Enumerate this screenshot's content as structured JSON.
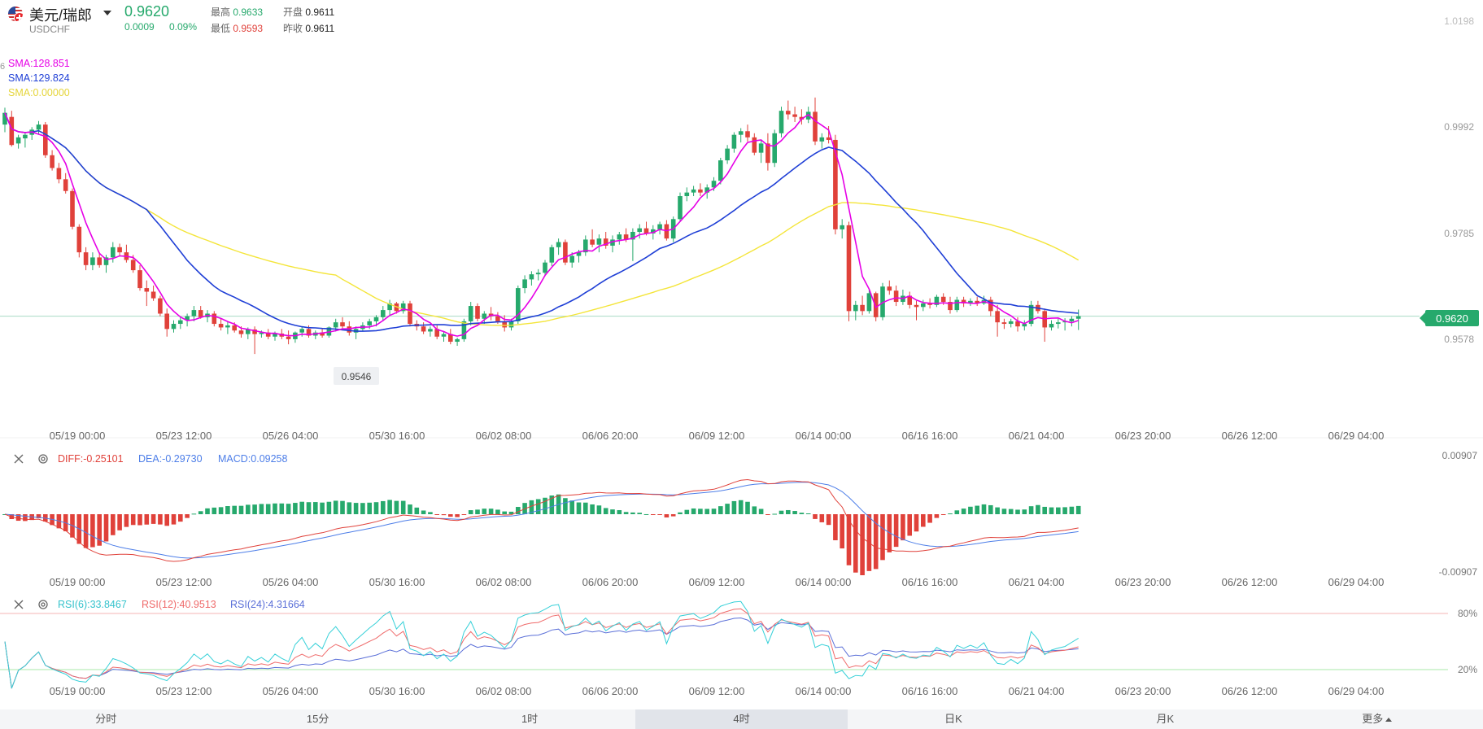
{
  "header": {
    "name": "美元/瑞郎",
    "code": "USDCHF",
    "price": "0.9620",
    "change": "0.0009",
    "change_pct": "0.09%",
    "stats": [
      {
        "label": "最高",
        "value": "0.9633",
        "color": "#26a96c"
      },
      {
        "label": "最低",
        "value": "0.9593",
        "color": "#e0413a"
      },
      {
        "label": "开盘",
        "value": "0.9611",
        "color": "#222222"
      },
      {
        "label": "昨收",
        "value": "0.9611",
        "color": "#222222"
      }
    ]
  },
  "indicators": {
    "sma": [
      "SMA:128.851",
      "SMA:129.824",
      "SMA:0.00000"
    ],
    "macd": [
      "DIFF:-0.25101",
      "DEA:-0.29730",
      "MACD:0.09258"
    ],
    "rsi": [
      "RSI(6):33.8467",
      "RSI(12):40.9513",
      "RSI(24):4.31664"
    ],
    "stray_label": "6"
  },
  "axes": {
    "price_ticks": [
      "1.0198",
      "0.9992",
      "0.9785",
      "0.9578"
    ],
    "current_price": "0.9620",
    "min_marker": "0.9546",
    "macd_ticks": [
      "0.00907",
      "-0.00907"
    ],
    "rsi_ticks": [
      "80%",
      "20%"
    ],
    "time_labels": [
      "05/19 00:00",
      "05/23 12:00",
      "05/26 04:00",
      "05/30 16:00",
      "06/02 08:00",
      "06/06 20:00",
      "06/09 12:00",
      "06/14 00:00",
      "06/16 16:00",
      "06/21 04:00",
      "06/23 20:00",
      "06/26 12:00",
      "06/29 04:00"
    ]
  },
  "tabs": [
    {
      "label": "分时",
      "active": false
    },
    {
      "label": "15分",
      "active": false
    },
    {
      "label": "1时",
      "active": false
    },
    {
      "label": "4时",
      "active": true
    },
    {
      "label": "日K",
      "active": false
    },
    {
      "label": "月K",
      "active": false
    },
    {
      "label": "更多",
      "active": false
    }
  ],
  "colors": {
    "up": "#26a96c",
    "down": "#e0413a",
    "sma_short": "#e600e6",
    "sma_mid": "#1f3fd6",
    "sma_long": "#f4e53a",
    "diff": "#e0413a",
    "dea": "#4d7ee8",
    "rsi6": "#35d0d8",
    "rsi12": "#ef6a6a",
    "rsi24": "#5a6fd8",
    "price_tag": "#26a96c"
  },
  "chart_data": {
    "type": "candlestick",
    "price_range": [
      0.95,
      1.0198
    ],
    "candles": [
      {
        "o": 0.9995,
        "h": 1.0028,
        "l": 0.998,
        "c": 1.0018
      },
      {
        "o": 1.001,
        "h": 1.0022,
        "l": 0.9952,
        "c": 0.9955
      },
      {
        "o": 0.9958,
        "h": 0.9975,
        "l": 0.9948,
        "c": 0.997
      },
      {
        "o": 0.9968,
        "h": 0.998,
        "l": 0.995,
        "c": 0.9975
      },
      {
        "o": 0.9975,
        "h": 0.999,
        "l": 0.9965,
        "c": 0.9985
      },
      {
        "o": 0.9985,
        "h": 1.0002,
        "l": 0.9975,
        "c": 0.9995
      },
      {
        "o": 0.9995,
        "h": 1.0,
        "l": 0.993,
        "c": 0.9935
      },
      {
        "o": 0.9935,
        "h": 0.9945,
        "l": 0.9905,
        "c": 0.991
      },
      {
        "o": 0.991,
        "h": 0.992,
        "l": 0.988,
        "c": 0.9888
      },
      {
        "o": 0.9888,
        "h": 0.99,
        "l": 0.986,
        "c": 0.9865
      },
      {
        "o": 0.9865,
        "h": 0.987,
        "l": 0.979,
        "c": 0.9795
      },
      {
        "o": 0.9795,
        "h": 0.98,
        "l": 0.9735,
        "c": 0.9745
      },
      {
        "o": 0.9745,
        "h": 0.9755,
        "l": 0.971,
        "c": 0.972
      },
      {
        "o": 0.972,
        "h": 0.9745,
        "l": 0.971,
        "c": 0.9735
      },
      {
        "o": 0.9735,
        "h": 0.9745,
        "l": 0.9715,
        "c": 0.972
      },
      {
        "o": 0.972,
        "h": 0.974,
        "l": 0.9705,
        "c": 0.9735
      },
      {
        "o": 0.9735,
        "h": 0.9765,
        "l": 0.9725,
        "c": 0.9755
      },
      {
        "o": 0.9755,
        "h": 0.9762,
        "l": 0.9738,
        "c": 0.9745
      },
      {
        "o": 0.9745,
        "h": 0.976,
        "l": 0.9725,
        "c": 0.973
      },
      {
        "o": 0.973,
        "h": 0.974,
        "l": 0.9705,
        "c": 0.971
      },
      {
        "o": 0.971,
        "h": 0.972,
        "l": 0.967,
        "c": 0.9675
      },
      {
        "o": 0.9675,
        "h": 0.969,
        "l": 0.964,
        "c": 0.9668
      },
      {
        "o": 0.9668,
        "h": 0.968,
        "l": 0.965,
        "c": 0.9655
      },
      {
        "o": 0.9655,
        "h": 0.966,
        "l": 0.962,
        "c": 0.9625
      },
      {
        "o": 0.9625,
        "h": 0.9635,
        "l": 0.958,
        "c": 0.9595
      },
      {
        "o": 0.9595,
        "h": 0.9612,
        "l": 0.9588,
        "c": 0.9605
      },
      {
        "o": 0.9605,
        "h": 0.9618,
        "l": 0.9595,
        "c": 0.9612
      },
      {
        "o": 0.9612,
        "h": 0.9625,
        "l": 0.96,
        "c": 0.962
      },
      {
        "o": 0.962,
        "h": 0.964,
        "l": 0.961,
        "c": 0.9632
      },
      {
        "o": 0.9632,
        "h": 0.964,
        "l": 0.9615,
        "c": 0.9618
      },
      {
        "o": 0.9618,
        "h": 0.9632,
        "l": 0.9608,
        "c": 0.9625
      },
      {
        "o": 0.9625,
        "h": 0.963,
        "l": 0.96,
        "c": 0.9605
      },
      {
        "o": 0.9605,
        "h": 0.9615,
        "l": 0.9592,
        "c": 0.9598
      },
      {
        "o": 0.9598,
        "h": 0.961,
        "l": 0.9585,
        "c": 0.9602
      },
      {
        "o": 0.9602,
        "h": 0.9608,
        "l": 0.9588,
        "c": 0.9592
      },
      {
        "o": 0.9592,
        "h": 0.96,
        "l": 0.9578,
        "c": 0.9585
      },
      {
        "o": 0.9585,
        "h": 0.9598,
        "l": 0.9575,
        "c": 0.9594
      },
      {
        "o": 0.9594,
        "h": 0.96,
        "l": 0.9546,
        "c": 0.9585
      },
      {
        "o": 0.9585,
        "h": 0.9592,
        "l": 0.9578,
        "c": 0.9588
      },
      {
        "o": 0.9588,
        "h": 0.9595,
        "l": 0.9575,
        "c": 0.958
      },
      {
        "o": 0.958,
        "h": 0.959,
        "l": 0.9572,
        "c": 0.9586
      },
      {
        "o": 0.9586,
        "h": 0.9595,
        "l": 0.9575,
        "c": 0.958
      },
      {
        "o": 0.958,
        "h": 0.9592,
        "l": 0.9565,
        "c": 0.9575
      },
      {
        "o": 0.9575,
        "h": 0.959,
        "l": 0.9568,
        "c": 0.9588
      },
      {
        "o": 0.9588,
        "h": 0.96,
        "l": 0.958,
        "c": 0.9595
      },
      {
        "o": 0.9595,
        "h": 0.9602,
        "l": 0.9578,
        "c": 0.9582
      },
      {
        "o": 0.9582,
        "h": 0.9592,
        "l": 0.9575,
        "c": 0.9588
      },
      {
        "o": 0.9588,
        "h": 0.9595,
        "l": 0.9578,
        "c": 0.9582
      },
      {
        "o": 0.9582,
        "h": 0.96,
        "l": 0.9578,
        "c": 0.9598
      },
      {
        "o": 0.9598,
        "h": 0.9615,
        "l": 0.959,
        "c": 0.9608
      },
      {
        "o": 0.9608,
        "h": 0.9618,
        "l": 0.9595,
        "c": 0.96
      },
      {
        "o": 0.96,
        "h": 0.961,
        "l": 0.9582,
        "c": 0.9588
      },
      {
        "o": 0.9588,
        "h": 0.96,
        "l": 0.9575,
        "c": 0.9595
      },
      {
        "o": 0.9595,
        "h": 0.9608,
        "l": 0.959,
        "c": 0.9602
      },
      {
        "o": 0.9602,
        "h": 0.9615,
        "l": 0.9595,
        "c": 0.961
      },
      {
        "o": 0.961,
        "h": 0.9622,
        "l": 0.96,
        "c": 0.9618
      },
      {
        "o": 0.9618,
        "h": 0.964,
        "l": 0.961,
        "c": 0.9632
      },
      {
        "o": 0.9632,
        "h": 0.9652,
        "l": 0.9622,
        "c": 0.9645
      },
      {
        "o": 0.9645,
        "h": 0.9648,
        "l": 0.9625,
        "c": 0.963
      },
      {
        "o": 0.963,
        "h": 0.965,
        "l": 0.9625,
        "c": 0.9645
      },
      {
        "o": 0.9645,
        "h": 0.965,
        "l": 0.96,
        "c": 0.9605
      },
      {
        "o": 0.9605,
        "h": 0.9612,
        "l": 0.9592,
        "c": 0.96
      },
      {
        "o": 0.96,
        "h": 0.9608,
        "l": 0.9585,
        "c": 0.959
      },
      {
        "o": 0.959,
        "h": 0.96,
        "l": 0.958,
        "c": 0.9595
      },
      {
        "o": 0.9595,
        "h": 0.9602,
        "l": 0.9575,
        "c": 0.958
      },
      {
        "o": 0.958,
        "h": 0.959,
        "l": 0.957,
        "c": 0.9585
      },
      {
        "o": 0.9585,
        "h": 0.9595,
        "l": 0.9565,
        "c": 0.957
      },
      {
        "o": 0.957,
        "h": 0.9578,
        "l": 0.9562,
        "c": 0.9575
      },
      {
        "o": 0.9575,
        "h": 0.9615,
        "l": 0.957,
        "c": 0.961
      },
      {
        "o": 0.961,
        "h": 0.9648,
        "l": 0.9602,
        "c": 0.964
      },
      {
        "o": 0.964,
        "h": 0.9645,
        "l": 0.961,
        "c": 0.9615
      },
      {
        "o": 0.9615,
        "h": 0.963,
        "l": 0.9605,
        "c": 0.9625
      },
      {
        "o": 0.9625,
        "h": 0.9638,
        "l": 0.9612,
        "c": 0.962
      },
      {
        "o": 0.962,
        "h": 0.9628,
        "l": 0.9605,
        "c": 0.961
      },
      {
        "o": 0.961,
        "h": 0.9622,
        "l": 0.959,
        "c": 0.9598
      },
      {
        "o": 0.9598,
        "h": 0.9615,
        "l": 0.9592,
        "c": 0.961
      },
      {
        "o": 0.961,
        "h": 0.968,
        "l": 0.9605,
        "c": 0.9675
      },
      {
        "o": 0.9675,
        "h": 0.97,
        "l": 0.9665,
        "c": 0.9692
      },
      {
        "o": 0.9692,
        "h": 0.9708,
        "l": 0.968,
        "c": 0.9702
      },
      {
        "o": 0.9702,
        "h": 0.9712,
        "l": 0.969,
        "c": 0.9705
      },
      {
        "o": 0.9705,
        "h": 0.973,
        "l": 0.9698,
        "c": 0.9725
      },
      {
        "o": 0.9725,
        "h": 0.976,
        "l": 0.9718,
        "c": 0.9755
      },
      {
        "o": 0.9755,
        "h": 0.9772,
        "l": 0.974,
        "c": 0.9765
      },
      {
        "o": 0.9765,
        "h": 0.977,
        "l": 0.972,
        "c": 0.9725
      },
      {
        "o": 0.9725,
        "h": 0.9745,
        "l": 0.9715,
        "c": 0.9738
      },
      {
        "o": 0.9738,
        "h": 0.975,
        "l": 0.9725,
        "c": 0.9745
      },
      {
        "o": 0.9745,
        "h": 0.9778,
        "l": 0.9738,
        "c": 0.977
      },
      {
        "o": 0.977,
        "h": 0.979,
        "l": 0.9755,
        "c": 0.976
      },
      {
        "o": 0.976,
        "h": 0.978,
        "l": 0.9745,
        "c": 0.9772
      },
      {
        "o": 0.9772,
        "h": 0.9785,
        "l": 0.9752,
        "c": 0.9758
      },
      {
        "o": 0.9758,
        "h": 0.9778,
        "l": 0.9745,
        "c": 0.977
      },
      {
        "o": 0.977,
        "h": 0.9785,
        "l": 0.976,
        "c": 0.978
      },
      {
        "o": 0.978,
        "h": 0.9792,
        "l": 0.9765,
        "c": 0.977
      },
      {
        "o": 0.977,
        "h": 0.9792,
        "l": 0.9728,
        "c": 0.9785
      },
      {
        "o": 0.9785,
        "h": 0.98,
        "l": 0.9772,
        "c": 0.9792
      },
      {
        "o": 0.9792,
        "h": 0.9805,
        "l": 0.9778,
        "c": 0.9782
      },
      {
        "o": 0.9782,
        "h": 0.9798,
        "l": 0.977,
        "c": 0.979
      },
      {
        "o": 0.979,
        "h": 0.9805,
        "l": 0.978,
        "c": 0.98
      },
      {
        "o": 0.98,
        "h": 0.9808,
        "l": 0.9768,
        "c": 0.9772
      },
      {
        "o": 0.9772,
        "h": 0.9815,
        "l": 0.9765,
        "c": 0.981
      },
      {
        "o": 0.981,
        "h": 0.9862,
        "l": 0.9805,
        "c": 0.9855
      },
      {
        "o": 0.9855,
        "h": 0.9872,
        "l": 0.9845,
        "c": 0.9862
      },
      {
        "o": 0.9862,
        "h": 0.9875,
        "l": 0.9855,
        "c": 0.9868
      },
      {
        "o": 0.9868,
        "h": 0.988,
        "l": 0.9855,
        "c": 0.9862
      },
      {
        "o": 0.9862,
        "h": 0.9878,
        "l": 0.985,
        "c": 0.9872
      },
      {
        "o": 0.9872,
        "h": 0.9892,
        "l": 0.9865,
        "c": 0.9885
      },
      {
        "o": 0.9885,
        "h": 0.993,
        "l": 0.9878,
        "c": 0.9925
      },
      {
        "o": 0.9925,
        "h": 0.9955,
        "l": 0.9918,
        "c": 0.9948
      },
      {
        "o": 0.9948,
        "h": 0.998,
        "l": 0.994,
        "c": 0.9975
      },
      {
        "o": 0.9975,
        "h": 0.9988,
        "l": 0.996,
        "c": 0.9982
      },
      {
        "o": 0.9982,
        "h": 0.9995,
        "l": 0.9962,
        "c": 0.997
      },
      {
        "o": 0.997,
        "h": 0.9978,
        "l": 0.9935,
        "c": 0.994
      },
      {
        "o": 0.994,
        "h": 0.9965,
        "l": 0.992,
        "c": 0.9958
      },
      {
        "o": 0.9958,
        "h": 0.9978,
        "l": 0.9905,
        "c": 0.992
      },
      {
        "o": 0.992,
        "h": 0.9985,
        "l": 0.9912,
        "c": 0.9978
      },
      {
        "o": 0.9978,
        "h": 1.003,
        "l": 0.997,
        "c": 1.0022
      },
      {
        "o": 1.0022,
        "h": 1.0042,
        "l": 1.0005,
        "c": 1.0015
      },
      {
        "o": 1.0015,
        "h": 1.003,
        "l": 1.0,
        "c": 1.001
      },
      {
        "o": 1.001,
        "h": 1.0025,
        "l": 0.9995,
        "c": 1.0005
      },
      {
        "o": 1.0005,
        "h": 1.003,
        "l": 0.9998,
        "c": 1.002
      },
      {
        "o": 1.002,
        "h": 1.0048,
        "l": 0.9955,
        "c": 0.9962
      },
      {
        "o": 0.9962,
        "h": 0.9978,
        "l": 0.9948,
        "c": 0.997
      },
      {
        "o": 0.997,
        "h": 0.9992,
        "l": 0.9958,
        "c": 0.9965
      },
      {
        "o": 0.9965,
        "h": 0.9975,
        "l": 0.978,
        "c": 0.979
      },
      {
        "o": 0.979,
        "h": 0.981,
        "l": 0.9772,
        "c": 0.9798
      },
      {
        "o": 0.9798,
        "h": 0.9805,
        "l": 0.961,
        "c": 0.963
      },
      {
        "o": 0.963,
        "h": 0.965,
        "l": 0.9612,
        "c": 0.9642
      },
      {
        "o": 0.9642,
        "h": 0.966,
        "l": 0.9622,
        "c": 0.963
      },
      {
        "o": 0.963,
        "h": 0.9672,
        "l": 0.9625,
        "c": 0.9665
      },
      {
        "o": 0.9665,
        "h": 0.9668,
        "l": 0.961,
        "c": 0.9618
      },
      {
        "o": 0.9618,
        "h": 0.9685,
        "l": 0.9612,
        "c": 0.9678
      },
      {
        "o": 0.9678,
        "h": 0.969,
        "l": 0.9662,
        "c": 0.967
      },
      {
        "o": 0.967,
        "h": 0.968,
        "l": 0.964,
        "c": 0.9648
      },
      {
        "o": 0.9648,
        "h": 0.9672,
        "l": 0.9642,
        "c": 0.966
      },
      {
        "o": 0.966,
        "h": 0.9668,
        "l": 0.9635,
        "c": 0.9642
      },
      {
        "o": 0.9642,
        "h": 0.965,
        "l": 0.9612,
        "c": 0.9638
      },
      {
        "o": 0.9638,
        "h": 0.9652,
        "l": 0.963,
        "c": 0.9645
      },
      {
        "o": 0.9645,
        "h": 0.9655,
        "l": 0.9635,
        "c": 0.9642
      },
      {
        "o": 0.9642,
        "h": 0.9662,
        "l": 0.9638,
        "c": 0.9658
      },
      {
        "o": 0.9658,
        "h": 0.9665,
        "l": 0.9642,
        "c": 0.9648
      },
      {
        "o": 0.9648,
        "h": 0.9658,
        "l": 0.9625,
        "c": 0.9632
      },
      {
        "o": 0.9632,
        "h": 0.9658,
        "l": 0.9628,
        "c": 0.9652
      },
      {
        "o": 0.9652,
        "h": 0.9658,
        "l": 0.9638,
        "c": 0.9645
      },
      {
        "o": 0.9645,
        "h": 0.9655,
        "l": 0.964,
        "c": 0.965
      },
      {
        "o": 0.965,
        "h": 0.9658,
        "l": 0.964,
        "c": 0.9645
      },
      {
        "o": 0.9645,
        "h": 0.966,
        "l": 0.9642,
        "c": 0.9652
      },
      {
        "o": 0.9652,
        "h": 0.9658,
        "l": 0.962,
        "c": 0.963
      },
      {
        "o": 0.963,
        "h": 0.9642,
        "l": 0.958,
        "c": 0.9608
      },
      {
        "o": 0.9608,
        "h": 0.9615,
        "l": 0.9595,
        "c": 0.9605
      },
      {
        "o": 0.9605,
        "h": 0.9615,
        "l": 0.9598,
        "c": 0.961
      },
      {
        "o": 0.961,
        "h": 0.9618,
        "l": 0.959,
        "c": 0.96
      },
      {
        "o": 0.96,
        "h": 0.9612,
        "l": 0.9592,
        "c": 0.9605
      },
      {
        "o": 0.9605,
        "h": 0.965,
        "l": 0.96,
        "c": 0.9642
      },
      {
        "o": 0.9642,
        "h": 0.965,
        "l": 0.9625,
        "c": 0.963
      },
      {
        "o": 0.963,
        "h": 0.9635,
        "l": 0.957,
        "c": 0.9598
      },
      {
        "o": 0.9598,
        "h": 0.9612,
        "l": 0.9592,
        "c": 0.9605
      },
      {
        "o": 0.9605,
        "h": 0.9615,
        "l": 0.9596,
        "c": 0.9608
      },
      {
        "o": 0.9608,
        "h": 0.9616,
        "l": 0.9592,
        "c": 0.961
      },
      {
        "o": 0.961,
        "h": 0.962,
        "l": 0.96,
        "c": 0.9615
      },
      {
        "o": 0.9615,
        "h": 0.9633,
        "l": 0.9593,
        "c": 0.962
      }
    ]
  }
}
